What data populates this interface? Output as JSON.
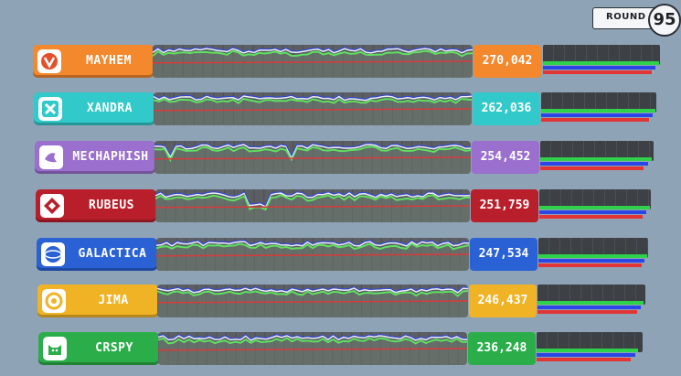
{
  "round": {
    "label": "ROUND",
    "number": "95"
  },
  "colors": {
    "stat_green": "#2fd04a",
    "stat_blue": "#2b45e6",
    "stat_red": "#e23535"
  },
  "teams": [
    {
      "name": "MAYHEM",
      "score": "270,042",
      "color": "#f3882d",
      "logo_icon": "mayhem-v-icon",
      "stats": [
        0.99,
        0.96,
        0.93
      ]
    },
    {
      "name": "XANDRA",
      "score": "262,036",
      "color": "#31c9c9",
      "logo_icon": "xandra-x-icon",
      "stats": [
        0.99,
        0.97,
        0.94
      ]
    },
    {
      "name": "MECHAPHISH",
      "score": "254,452",
      "color": "#9a6fce",
      "logo_icon": "mechaphish-fish-icon",
      "stats": [
        0.98,
        0.95,
        0.91
      ]
    },
    {
      "name": "RUBEUS",
      "score": "251,759",
      "color": "#b91f2b",
      "logo_icon": "rubeus-diamond-icon",
      "stats": [
        0.99,
        0.96,
        0.93
      ]
    },
    {
      "name": "GALACTICA",
      "score": "247,534",
      "color": "#2a62d6",
      "logo_icon": "galactica-globe-icon",
      "stats": [
        0.99,
        0.97,
        0.94
      ]
    },
    {
      "name": "JIMA",
      "score": "246,437",
      "color": "#f0b326",
      "logo_icon": "jima-circle-icon",
      "stats": [
        0.98,
        0.96,
        0.92
      ]
    },
    {
      "name": "CRSPY",
      "score": "236,248",
      "color": "#2bae4a",
      "logo_icon": "crspy-cat-icon",
      "stats": [
        0.96,
        0.93,
        0.89
      ]
    }
  ]
}
